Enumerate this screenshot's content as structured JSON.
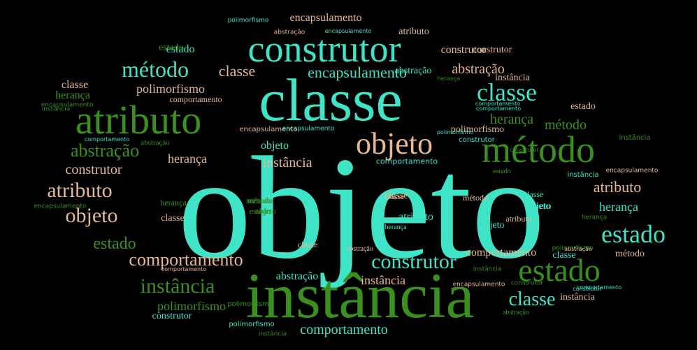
{
  "palette": {
    "background": "#000000",
    "teal": "#3fe3c6",
    "green": "#3a8f1f",
    "peach": "#e5b793"
  },
  "words": [
    "objeto",
    "instância",
    "classe",
    "atributo",
    "método",
    "construtor",
    "objeto",
    "estado",
    "estado",
    "método",
    "classe",
    "encapsulamento",
    "atributo",
    "objeto",
    "construtor",
    "instância",
    "abstração",
    "comportamento",
    "herança",
    "classe",
    "classe",
    "estado",
    "atributo",
    "comportamento",
    "construtor",
    "abstração",
    "polimorfismo",
    "instância",
    "instância",
    "construtor",
    "abstração",
    "herança",
    "polimorfismo",
    "estado",
    "herança",
    "método",
    "instância",
    "encapsulamento",
    "atributo",
    "classe",
    "objeto",
    "classe",
    "polimorfismo",
    "construtor",
    "comportamento",
    "objeto",
    "objeto",
    "classe",
    "classe",
    "instância",
    "abstração",
    "atributo",
    "estado",
    "estado",
    "classe",
    "construtor",
    "comportamento",
    "método",
    "método",
    "objeto",
    "encapsulamento",
    "instância",
    "abstração",
    "herança",
    "herança",
    "estado",
    "classe",
    "atributo",
    "método",
    "objeto",
    "classe",
    "método",
    "herança",
    "abstração",
    "abstração",
    "estado",
    "encapsulamento",
    "encapsulamento",
    "encapsulamento",
    "polimorfismo",
    "comportamento",
    "comportamento",
    "polimorfismo",
    "comportamento",
    "abstração",
    "herança",
    "instância",
    "encapsulamento",
    "comportamento",
    "construtor",
    "instância",
    "instância",
    "construtor",
    "herança",
    "polimorfismo",
    "encapsulamento",
    "polimorfismo",
    "encapsulamento",
    "comportamento",
    "abstração",
    "construtor",
    "comportamento",
    "instância",
    "polimorfismo",
    "construtor",
    "método"
  ]
}
